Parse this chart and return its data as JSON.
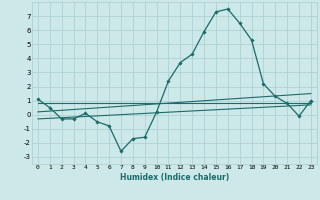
{
  "xlabel": "Humidex (Indice chaleur)",
  "ylabel": "",
  "background_color": "#cde8e8",
  "grid_color": "#aacece",
  "line_color": "#1a6b6b",
  "xlim": [
    -0.5,
    23.5
  ],
  "ylim": [
    -3.5,
    8.0
  ],
  "yticks": [
    -3,
    -2,
    -1,
    0,
    1,
    2,
    3,
    4,
    5,
    6,
    7
  ],
  "xticks": [
    0,
    1,
    2,
    3,
    4,
    5,
    6,
    7,
    8,
    9,
    10,
    11,
    12,
    13,
    14,
    15,
    16,
    17,
    18,
    19,
    20,
    21,
    22,
    23
  ],
  "series": [
    {
      "x": [
        0,
        1,
        2,
        3,
        4,
        5,
        6,
        7,
        8,
        9,
        10,
        11,
        12,
        13,
        14,
        15,
        16,
        17,
        18,
        19,
        20,
        21,
        22,
        23
      ],
      "y": [
        1.1,
        0.5,
        -0.3,
        -0.3,
        0.1,
        -0.5,
        -0.8,
        -2.6,
        -1.7,
        -1.6,
        0.2,
        2.4,
        3.7,
        4.3,
        5.9,
        7.3,
        7.5,
        6.5,
        5.3,
        2.2,
        1.3,
        0.8,
        -0.1,
        1.0
      ],
      "marker": "D",
      "marker_size": 1.8,
      "linewidth": 0.9
    },
    {
      "x": [
        0,
        23
      ],
      "y": [
        0.8,
        0.8
      ],
      "marker": null,
      "linewidth": 0.8
    },
    {
      "x": [
        0,
        23
      ],
      "y": [
        0.2,
        1.5
      ],
      "marker": null,
      "linewidth": 0.8
    },
    {
      "x": [
        0,
        23
      ],
      "y": [
        -0.3,
        0.7
      ],
      "marker": null,
      "linewidth": 0.8
    }
  ]
}
